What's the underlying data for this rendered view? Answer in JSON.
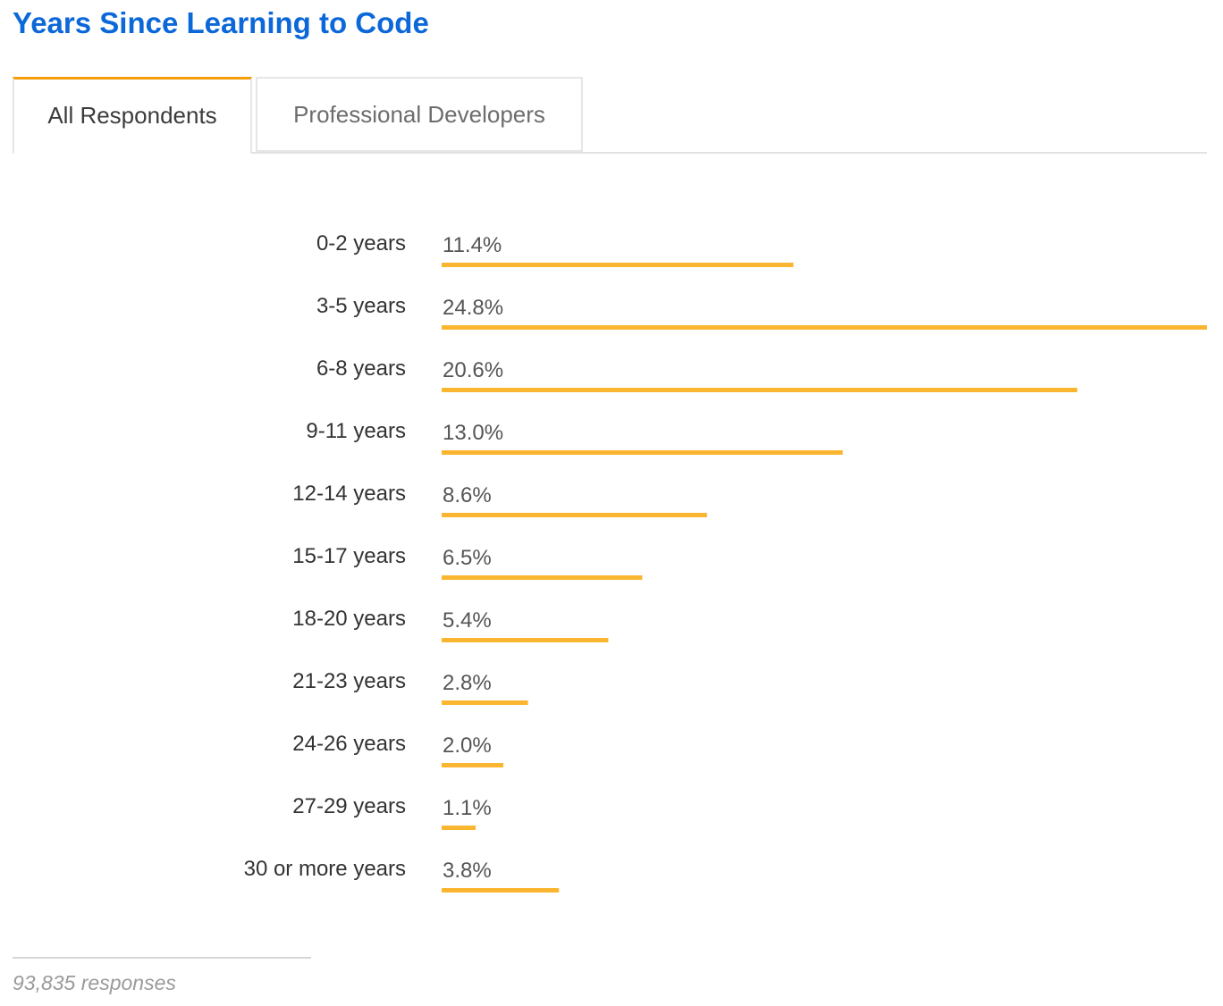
{
  "title": "Years Since Learning to Code",
  "tabs": [
    {
      "label": "All Respondents",
      "active": true
    },
    {
      "label": "Professional Developers",
      "active": false
    }
  ],
  "footer": {
    "responses": "93,835 responses"
  },
  "colors": {
    "title": "#0c68d8",
    "tab_accent": "#f49f0a",
    "bar": "#fbb631",
    "category_text": "#333333",
    "value_text": "#555555"
  },
  "chart_data": {
    "type": "bar",
    "orientation": "horizontal",
    "categories": [
      "0-2 years",
      "3-5 years",
      "6-8 years",
      "9-11 years",
      "12-14 years",
      "15-17 years",
      "18-20 years",
      "21-23 years",
      "24-26 years",
      "27-29 years",
      "30 or more years"
    ],
    "values": [
      11.4,
      24.8,
      20.6,
      13.0,
      8.6,
      6.5,
      5.4,
      2.8,
      2.0,
      1.1,
      3.8
    ],
    "value_labels": [
      "11.4%",
      "24.8%",
      "20.6%",
      "13.0%",
      "8.6%",
      "6.5%",
      "5.4%",
      "2.8%",
      "2.0%",
      "1.1%",
      "3.8%"
    ],
    "unit": "%",
    "xlim": [
      0,
      24.8
    ],
    "grid": false,
    "legend": "none"
  }
}
